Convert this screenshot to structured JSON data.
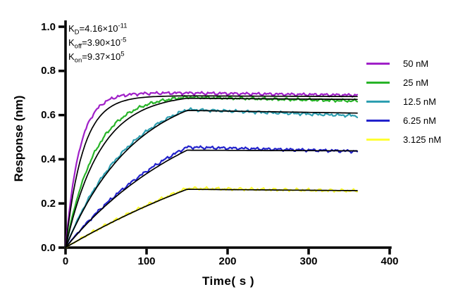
{
  "figure": {
    "background": "#FFFFFF",
    "axis_color": "#000000",
    "text_color": "#000000"
  },
  "annotation": {
    "lines": [
      {
        "base": "K",
        "sub": "D",
        "mid": "=4.16×10",
        "sup": "-11"
      },
      {
        "base": "K",
        "sub": "off",
        "mid": "=3.90×10",
        "sup": "-5"
      },
      {
        "base": "K",
        "sub": "on",
        "mid": "=9.37×10",
        "sup": "5"
      }
    ]
  },
  "chart_data": {
    "type": "line",
    "title": "",
    "xlabel": "Time( s )",
    "ylabel": "Response (nm)",
    "xlim": [
      0,
      400
    ],
    "ylim": [
      0.0,
      1.0
    ],
    "xticks": [
      0,
      100,
      200,
      300,
      400
    ],
    "ytick_labels": [
      "0.0",
      "0.2",
      "0.4",
      "0.6",
      "0.8",
      "1.0"
    ],
    "grid": false,
    "legend_position": "right",
    "association_end_s": 150,
    "trace_end_s": 360,
    "fit_color": "#000000",
    "model": "binding kinetics: colored noisy traces = measured sensorgrams, smooth black traces = kinetic fit",
    "series": [
      {
        "label": "50 nM",
        "color": "#A020C8",
        "k_data": 0.058,
        "k_fit": 0.047,
        "peak": 0.7,
        "data_end": 0.69,
        "fit_peak": 0.687,
        "fit_end": 0.684,
        "seed": 1
      },
      {
        "label": "25 nM",
        "color": "#28B428",
        "k_data": 0.027,
        "k_fit": 0.0235,
        "peak": 0.681,
        "data_end": 0.664,
        "fit_peak": 0.676,
        "fit_end": 0.671,
        "seed": 2
      },
      {
        "label": "12.5 nM",
        "color": "#2E9FB1",
        "k_data": 0.0125,
        "k_fit": 0.0117,
        "peak": 0.625,
        "data_end": 0.597,
        "fit_peak": 0.621,
        "fit_end": 0.609,
        "seed": 3
      },
      {
        "label": "6.25 nM",
        "color": "#2222CC",
        "k_data": 0.006,
        "k_fit": 0.0059,
        "peak": 0.455,
        "data_end": 0.436,
        "fit_peak": 0.441,
        "fit_end": 0.438,
        "seed": 4
      },
      {
        "label": "3.125 nM",
        "color": "#FFFF33",
        "k_data": 0.0029,
        "k_fit": 0.0029,
        "peak": 0.268,
        "data_end": 0.257,
        "fit_peak": 0.264,
        "fit_end": 0.258,
        "seed": 5
      }
    ]
  }
}
